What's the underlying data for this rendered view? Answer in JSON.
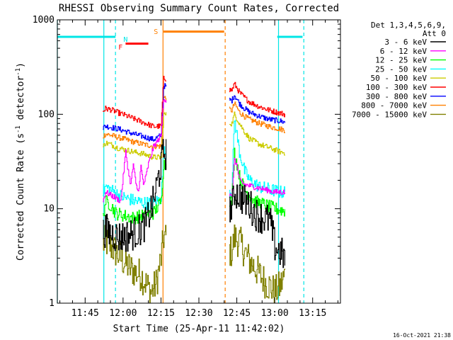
{
  "chart_data": {
    "type": "line",
    "title": "RHESSI Observing Summary Count Rates, Corrected",
    "xlabel": "Start Time (25-Apr-11 11:42:02)",
    "ylabel_main": "Corrected Count Rate (s",
    "ylabel_sup1": "-1",
    "ylabel_mid": " detector",
    "ylabel_sup2": "-1",
    "ylabel_end": ")",
    "yscale": "log",
    "xlim": [
      -8,
      104
    ],
    "ylim": [
      1,
      1000
    ],
    "x_ticks": [
      {
        "value": 3,
        "label": "11:45"
      },
      {
        "value": 18,
        "label": "12:00"
      },
      {
        "value": 33,
        "label": "12:15"
      },
      {
        "value": 48,
        "label": "12:30"
      },
      {
        "value": 63,
        "label": "12:45"
      },
      {
        "value": 78,
        "label": "13:00"
      },
      {
        "value": 93,
        "label": "13:15"
      }
    ],
    "y_ticks": [
      {
        "value": 1,
        "label": "1"
      },
      {
        "value": 10,
        "label": "10"
      },
      {
        "value": 100,
        "label": "100"
      },
      {
        "value": 1000,
        "label": "1000"
      }
    ],
    "legend_header": [
      "Det 1,3,4,5,6,9,",
      "Att 0"
    ],
    "legend_position": "top-right",
    "series": [
      {
        "name": "3 - 6 keV",
        "color": "#000000",
        "points": [
          [
            10,
            5.5
          ],
          [
            11,
            6
          ],
          [
            13,
            5.5
          ],
          [
            16,
            5
          ],
          [
            20,
            5.2
          ],
          [
            24,
            5.8
          ],
          [
            27,
            7
          ],
          [
            30,
            12
          ],
          [
            33,
            30
          ],
          [
            34,
            40
          ],
          [
            61,
            10
          ],
          [
            62,
            15
          ],
          [
            64,
            14
          ],
          [
            66,
            12
          ],
          [
            68,
            11
          ],
          [
            70,
            9
          ],
          [
            73,
            8
          ],
          [
            76,
            7.5
          ],
          [
            78,
            4
          ],
          [
            80,
            3.5
          ],
          [
            82,
            3
          ]
        ]
      },
      {
        "name": "6 - 12 keV",
        "color": "#ff00ff",
        "points": [
          [
            10,
            12
          ],
          [
            11,
            15
          ],
          [
            13,
            14
          ],
          [
            15,
            13
          ],
          [
            17,
            12
          ],
          [
            19,
            40
          ],
          [
            20,
            25
          ],
          [
            21,
            18
          ],
          [
            22,
            30
          ],
          [
            23,
            18
          ],
          [
            24,
            15
          ],
          [
            25,
            28
          ],
          [
            26,
            18
          ],
          [
            27,
            22
          ],
          [
            28,
            30
          ],
          [
            30,
            45
          ],
          [
            33,
            60
          ],
          [
            34,
            150
          ],
          [
            61,
            13
          ],
          [
            62,
            35
          ],
          [
            63,
            28
          ],
          [
            64,
            20
          ],
          [
            66,
            18
          ],
          [
            70,
            17
          ],
          [
            74,
            16
          ],
          [
            78,
            15
          ],
          [
            82,
            15
          ]
        ]
      },
      {
        "name": "12 - 25 keV",
        "color": "#00ff00",
        "points": [
          [
            10,
            8
          ],
          [
            11,
            12
          ],
          [
            13,
            11
          ],
          [
            15,
            9
          ],
          [
            18,
            8.5
          ],
          [
            22,
            8
          ],
          [
            26,
            8.5
          ],
          [
            30,
            9
          ],
          [
            33,
            12
          ],
          [
            34,
            30
          ],
          [
            61,
            12
          ],
          [
            62,
            40
          ],
          [
            63,
            30
          ],
          [
            64,
            22
          ],
          [
            66,
            16
          ],
          [
            70,
            12
          ],
          [
            74,
            11
          ],
          [
            78,
            10
          ],
          [
            82,
            9.5
          ]
        ]
      },
      {
        "name": "25 - 50 keV",
        "color": "#00ffff",
        "points": [
          [
            10,
            15
          ],
          [
            11,
            17
          ],
          [
            13,
            16
          ],
          [
            16,
            14
          ],
          [
            19,
            13
          ],
          [
            23,
            12
          ],
          [
            27,
            11.5
          ],
          [
            30,
            11.5
          ],
          [
            33,
            13
          ],
          [
            34,
            40
          ],
          [
            61,
            15
          ],
          [
            62,
            90
          ],
          [
            63,
            60
          ],
          [
            64,
            40
          ],
          [
            66,
            25
          ],
          [
            68,
            20
          ],
          [
            72,
            17
          ],
          [
            76,
            16
          ],
          [
            80,
            15
          ],
          [
            82,
            15
          ]
        ]
      },
      {
        "name": "50 - 100 keV",
        "color": "#cccc00",
        "points": [
          [
            10,
            45
          ],
          [
            11,
            50
          ],
          [
            13,
            48
          ],
          [
            16,
            44
          ],
          [
            19,
            42
          ],
          [
            22,
            40
          ],
          [
            26,
            38
          ],
          [
            30,
            35
          ],
          [
            33,
            35
          ],
          [
            34,
            100
          ],
          [
            61,
            80
          ],
          [
            62,
            100
          ],
          [
            64,
            80
          ],
          [
            66,
            65
          ],
          [
            68,
            55
          ],
          [
            72,
            48
          ],
          [
            76,
            44
          ],
          [
            80,
            40
          ],
          [
            82,
            39
          ]
        ]
      },
      {
        "name": "100 - 300 keV",
        "color": "#ff0000",
        "points": [
          [
            10,
            108
          ],
          [
            11,
            115
          ],
          [
            13,
            112
          ],
          [
            16,
            104
          ],
          [
            19,
            97
          ],
          [
            22,
            90
          ],
          [
            26,
            82
          ],
          [
            30,
            74
          ],
          [
            33,
            75
          ],
          [
            34,
            240
          ],
          [
            61,
            180
          ],
          [
            62,
            210
          ],
          [
            64,
            170
          ],
          [
            66,
            150
          ],
          [
            68,
            135
          ],
          [
            72,
            120
          ],
          [
            76,
            110
          ],
          [
            80,
            103
          ],
          [
            82,
            100
          ]
        ]
      },
      {
        "name": "300 - 800 keV",
        "color": "#0000ff",
        "points": [
          [
            10,
            72
          ],
          [
            11,
            75
          ],
          [
            13,
            73
          ],
          [
            16,
            70
          ],
          [
            19,
            66
          ],
          [
            22,
            62
          ],
          [
            26,
            58
          ],
          [
            30,
            54
          ],
          [
            33,
            60
          ],
          [
            34,
            200
          ],
          [
            61,
            140
          ],
          [
            62,
            160
          ],
          [
            64,
            130
          ],
          [
            66,
            115
          ],
          [
            68,
            105
          ],
          [
            72,
            95
          ],
          [
            76,
            88
          ],
          [
            80,
            85
          ],
          [
            82,
            82
          ]
        ]
      },
      {
        "name": "800 - 7000 keV",
        "color": "#ff8000",
        "points": [
          [
            10,
            58
          ],
          [
            11,
            62
          ],
          [
            13,
            60
          ],
          [
            16,
            57
          ],
          [
            19,
            54
          ],
          [
            22,
            51
          ],
          [
            26,
            48
          ],
          [
            30,
            46
          ],
          [
            33,
            46
          ],
          [
            34,
            150
          ],
          [
            61,
            110
          ],
          [
            62,
            130
          ],
          [
            64,
            105
          ],
          [
            66,
            95
          ],
          [
            68,
            88
          ],
          [
            72,
            80
          ],
          [
            76,
            74
          ],
          [
            80,
            70
          ],
          [
            82,
            68
          ]
        ]
      },
      {
        "name": "7000 - 15000 keV",
        "color": "#808000",
        "points": [
          [
            10,
            4.2
          ],
          [
            11,
            4.5
          ],
          [
            13,
            4
          ],
          [
            15,
            3.5
          ],
          [
            17,
            3
          ],
          [
            19,
            2.6
          ],
          [
            21,
            2.3
          ],
          [
            23,
            2.1
          ],
          [
            25,
            2
          ],
          [
            27,
            1.6
          ],
          [
            29,
            1.3
          ],
          [
            31,
            1.6
          ],
          [
            33,
            3
          ],
          [
            34,
            5
          ],
          [
            61,
            3.5
          ],
          [
            62,
            5
          ],
          [
            64,
            4.5
          ],
          [
            66,
            3.5
          ],
          [
            68,
            2.8
          ],
          [
            70,
            2.4
          ],
          [
            72,
            2
          ],
          [
            74,
            1.7
          ],
          [
            76,
            1.5
          ],
          [
            78,
            1.3
          ],
          [
            80,
            1.5
          ],
          [
            82,
            2
          ]
        ]
      }
    ],
    "event_bars": [
      {
        "label": "N",
        "color": "#00e6e6",
        "points": [
          [
            -8,
            660
          ],
          [
            15,
            660
          ]
        ],
        "label_at": [
          19,
          630
        ]
      },
      {
        "label": "",
        "color": "#00e6e6",
        "points": [
          [
            79,
            660
          ],
          [
            89,
            660
          ]
        ]
      },
      {
        "label": "F",
        "color": "#ff0000",
        "points": [
          [
            19,
            560
          ],
          [
            28,
            560
          ]
        ],
        "label_at": [
          17,
          520
        ]
      },
      {
        "label": "S",
        "color": "#ff8000",
        "points": [
          [
            34,
            750
          ],
          [
            58,
            750
          ]
        ],
        "label_at": [
          31,
          760
        ]
      }
    ],
    "vertical_lines": [
      {
        "x": -8,
        "color": "#00e6e6",
        "style": "solid"
      },
      {
        "x": 10.4,
        "color": "#00e6e6",
        "style": "solid"
      },
      {
        "x": 15,
        "color": "#00e6e6",
        "style": "dashed"
      },
      {
        "x": 33.8,
        "color": "#ff8000",
        "style": "solid"
      },
      {
        "x": 58.4,
        "color": "#ff8000",
        "style": "dashed"
      },
      {
        "x": 79.5,
        "color": "#00e6e6",
        "style": "solid"
      },
      {
        "x": 89.5,
        "color": "#00e6e6",
        "style": "dashed"
      }
    ],
    "gaps": [
      [
        35,
        60
      ],
      [
        83,
        104
      ]
    ],
    "timestamp": "16-Oct-2021 21:38"
  }
}
